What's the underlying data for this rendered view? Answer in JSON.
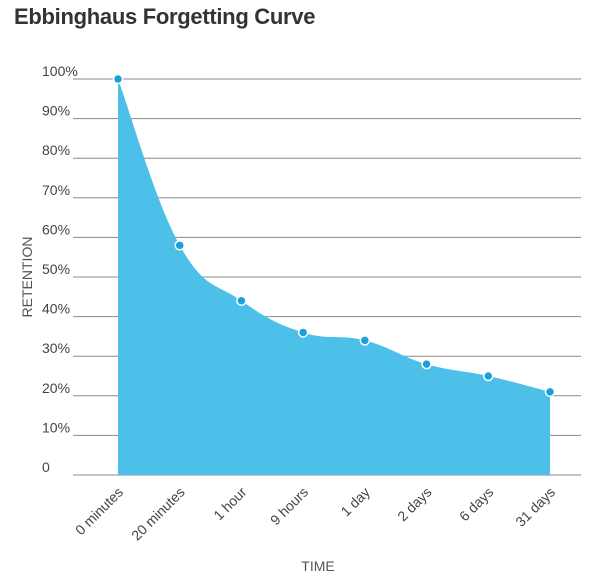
{
  "chart_data": {
    "type": "area",
    "title": "Ebbinghaus Forgetting Curve",
    "xlabel": "TIME",
    "ylabel": "RETENTION",
    "categories": [
      "0 minutes",
      "20 minutes",
      "1 hour",
      "9 hours",
      "1 day",
      "2 days",
      "6 days",
      "31 days"
    ],
    "values": [
      100,
      58,
      44,
      36,
      34,
      28,
      25,
      21
    ],
    "y_ticks": [
      "0",
      "10%",
      "20%",
      "30%",
      "40%",
      "50%",
      "60%",
      "70%",
      "80%",
      "90%",
      "100%"
    ],
    "ylim": [
      0,
      100
    ],
    "grid": true,
    "legend": "none",
    "colors": {
      "fill": "#4dc0ea",
      "point": "#1aa0d8",
      "grid": "#888888",
      "text": "#444444"
    }
  }
}
